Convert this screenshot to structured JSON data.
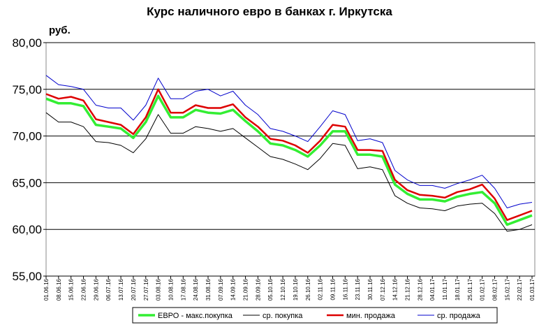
{
  "chart_data": {
    "type": "line",
    "title": "Курс наличного евро в банках г. Иркутска",
    "y_axis_label": "руб.",
    "categories": [
      "01.06.16",
      "08.06.16",
      "15.06.16",
      "22.06.16",
      "29.06.16",
      "06.07.16",
      "13.07.16",
      "20.07.16",
      "27.07.16",
      "03.08.16",
      "10.08.16",
      "17.08.16",
      "24.08.16",
      "31.08.16",
      "07.09.16",
      "14.09.16",
      "21.09.16",
      "28.09.16",
      "05.10.16",
      "12.10.16",
      "19.10.16",
      "26.10.16",
      "02.11.16",
      "09.11.16",
      "16.11.16",
      "23.11.16",
      "30.11.16",
      "07.12.16",
      "14.12.16",
      "21.12.16",
      "28.12.16",
      "04.01.17",
      "11.01.17",
      "18.01.17",
      "25.01.17",
      "01.02.17",
      "08.02.17",
      "15.02.17",
      "22.02.17",
      "01.03.17"
    ],
    "series": [
      {
        "name": "ЕВРО - макс.покупка",
        "color": "#33ee33",
        "values": [
          74.0,
          73.5,
          73.5,
          73.2,
          71.2,
          71.0,
          70.8,
          69.8,
          71.5,
          74.3,
          72.0,
          72.0,
          72.8,
          72.5,
          72.4,
          72.8,
          71.6,
          70.5,
          69.2,
          69.0,
          68.5,
          67.8,
          69.0,
          70.5,
          70.5,
          68.0,
          68.0,
          67.8,
          64.8,
          63.8,
          63.2,
          63.2,
          63.0,
          63.5,
          63.8,
          64.0,
          62.8,
          60.5,
          61.0,
          61.5
        ]
      },
      {
        "name": "ср. покупка",
        "color": "#000000",
        "values": [
          72.5,
          71.5,
          71.5,
          71.0,
          69.4,
          69.3,
          69.0,
          68.2,
          69.7,
          72.3,
          70.3,
          70.3,
          71.0,
          70.8,
          70.5,
          70.8,
          69.8,
          68.8,
          67.8,
          67.5,
          67.0,
          66.4,
          67.6,
          69.2,
          69.0,
          66.5,
          66.7,
          66.4,
          63.6,
          62.8,
          62.3,
          62.2,
          62.0,
          62.5,
          62.7,
          62.8,
          61.7,
          59.8,
          60.0,
          60.5
        ]
      },
      {
        "name": "мин. продажа",
        "color": "#dd0000",
        "values": [
          74.5,
          74.0,
          74.2,
          73.8,
          71.8,
          71.5,
          71.2,
          70.2,
          72.0,
          75.0,
          72.5,
          72.5,
          73.3,
          73.0,
          73.0,
          73.4,
          72.0,
          71.0,
          69.7,
          69.5,
          69.0,
          68.2,
          69.5,
          71.2,
          71.0,
          68.5,
          68.5,
          68.4,
          65.3,
          64.2,
          63.7,
          63.6,
          63.4,
          64.0,
          64.3,
          64.8,
          63.3,
          61.0,
          61.5,
          62.0
        ]
      },
      {
        "name": "ср. продажа",
        "color": "#0000cc",
        "values": [
          76.5,
          75.5,
          75.3,
          75.0,
          73.3,
          73.0,
          73.0,
          71.7,
          73.3,
          76.2,
          74.0,
          74.0,
          74.8,
          75.0,
          74.3,
          74.8,
          73.3,
          72.3,
          70.8,
          70.5,
          70.0,
          69.4,
          71.0,
          72.7,
          72.3,
          69.5,
          69.7,
          69.3,
          66.3,
          65.3,
          64.7,
          64.7,
          64.4,
          64.9,
          65.3,
          65.8,
          64.4,
          62.3,
          62.7,
          62.9
        ]
      }
    ],
    "ylim": [
      55,
      80
    ],
    "yticks": [
      {
        "value": 55,
        "label": "55,00"
      },
      {
        "value": 60,
        "label": "60,00"
      },
      {
        "value": 65,
        "label": "65,00"
      },
      {
        "value": 70,
        "label": "70,00"
      },
      {
        "value": 75,
        "label": "75,00"
      },
      {
        "value": 80,
        "label": "80,00"
      }
    ],
    "grid": true,
    "legend": "bottom"
  }
}
